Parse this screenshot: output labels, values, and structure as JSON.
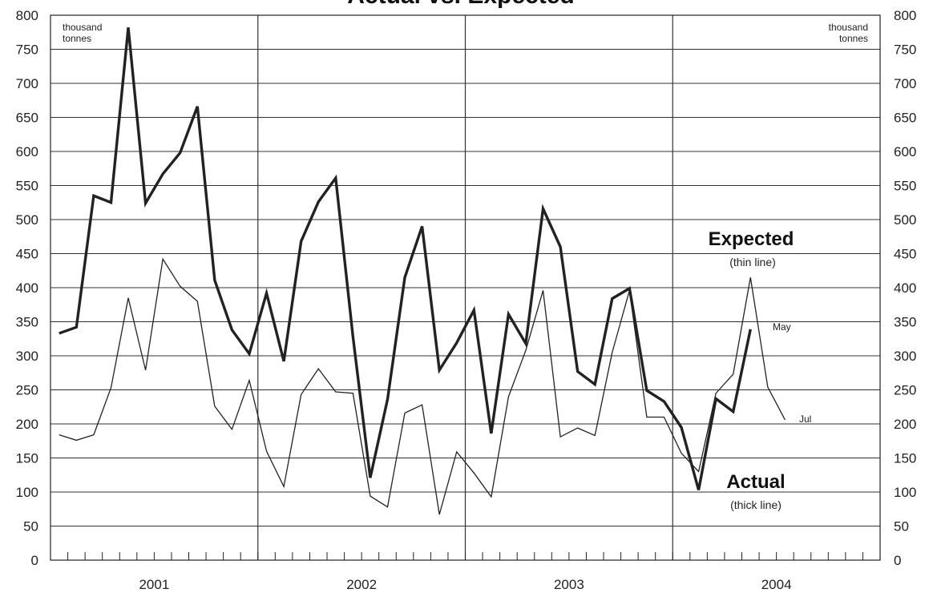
{
  "chart_data": {
    "type": "line",
    "title": "Actual vs. Expected",
    "unit_left": [
      "thousand",
      "tonnes"
    ],
    "unit_right": [
      "thousand",
      "tonnes"
    ],
    "ylim": [
      0,
      800
    ],
    "y_ticks": [
      0,
      50,
      100,
      150,
      200,
      250,
      300,
      350,
      400,
      450,
      500,
      550,
      600,
      650,
      700,
      750,
      800
    ],
    "grid": true,
    "x_ticks_per_year": 12,
    "years": [
      "2001",
      "2002",
      "2003",
      "2004"
    ],
    "series": [
      {
        "id": "actual",
        "label": "Actual",
        "sublabel": "(thick line)",
        "style": "thick",
        "color": "#222222",
        "values": [
          333,
          342,
          535,
          525,
          782,
          524,
          567,
          598,
          666,
          411,
          338,
          303,
          392,
          292,
          468,
          526,
          561,
          328,
          121,
          236,
          415,
          490,
          279,
          319,
          367,
          186,
          361,
          318,
          516,
          460,
          277,
          258,
          384,
          399,
          249,
          233,
          195,
          103,
          237,
          218,
          339
        ]
      },
      {
        "id": "expected",
        "label": "Expected",
        "sublabel": "(thin line)",
        "style": "thin",
        "color": "#222222",
        "values": [
          184,
          176,
          184,
          253,
          385,
          279,
          442,
          402,
          380,
          226,
          192,
          264,
          160,
          108,
          243,
          281,
          247,
          245,
          94,
          78,
          216,
          228,
          67,
          159,
          128,
          93,
          240,
          308,
          396,
          181,
          194,
          183,
          305,
          396,
          210,
          210,
          157,
          130,
          245,
          273,
          415,
          254,
          206
        ]
      }
    ],
    "end_labels": [
      {
        "text": "May",
        "series": "actual"
      },
      {
        "text": "Jul",
        "series": "expected"
      }
    ]
  }
}
